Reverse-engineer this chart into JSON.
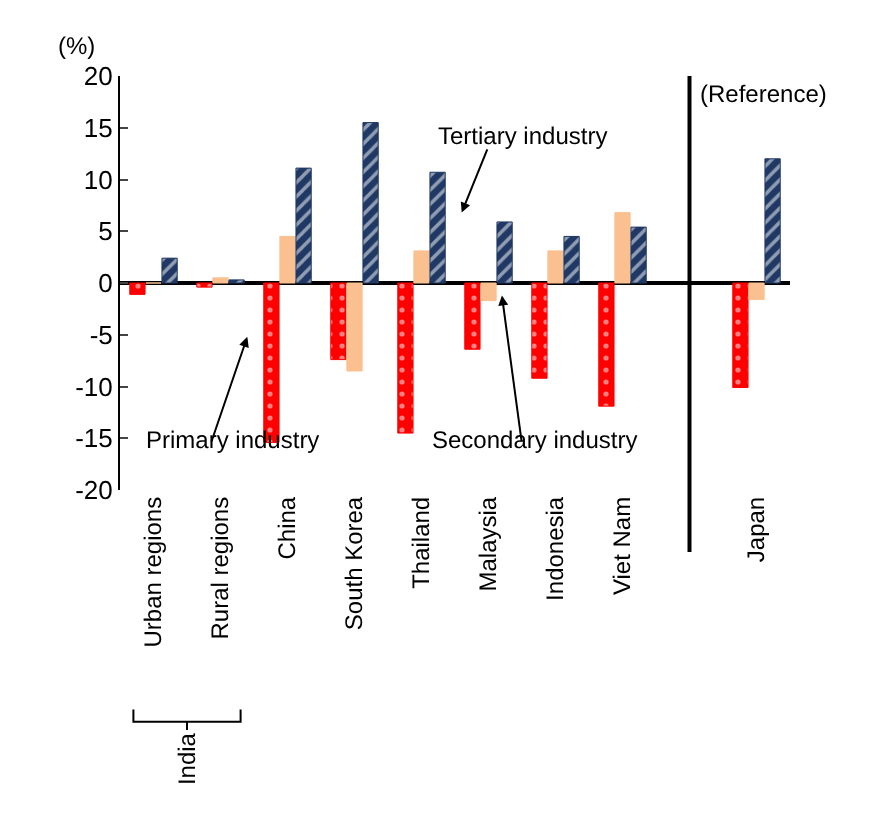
{
  "chart_data": {
    "type": "bar",
    "ylabel": "(%)",
    "categories": [
      "Urban regions",
      "Rural regions",
      "China",
      "South Korea",
      "Thailand",
      "Malaysia",
      "Indonesia",
      "Viet Nam",
      null,
      "Japan"
    ],
    "series": [
      {
        "name": "Primary industry",
        "color": "#ff0000",
        "values": [
          -1.1,
          -0.4,
          -15.4,
          -7.4,
          -14.5,
          -6.4,
          -9.2,
          -11.9,
          null,
          -10.1
        ]
      },
      {
        "name": "Secondary industry",
        "color": "#fac090",
        "values": [
          0,
          0.5,
          4.5,
          -8.5,
          3.1,
          -1.7,
          3.1,
          6.8,
          null,
          -1.6
        ]
      },
      {
        "name": "Tertiary industry",
        "color": "#1f3864",
        "values": [
          2.4,
          0.3,
          11.1,
          15.5,
          10.7,
          5.9,
          4.5,
          5.4,
          null,
          12.0
        ]
      }
    ],
    "ylim": [
      -20,
      20
    ],
    "yticks": [
      -20,
      -15,
      -10,
      -5,
      0,
      5,
      10,
      15,
      20
    ],
    "annotations": [
      "India",
      "(Reference)"
    ]
  }
}
